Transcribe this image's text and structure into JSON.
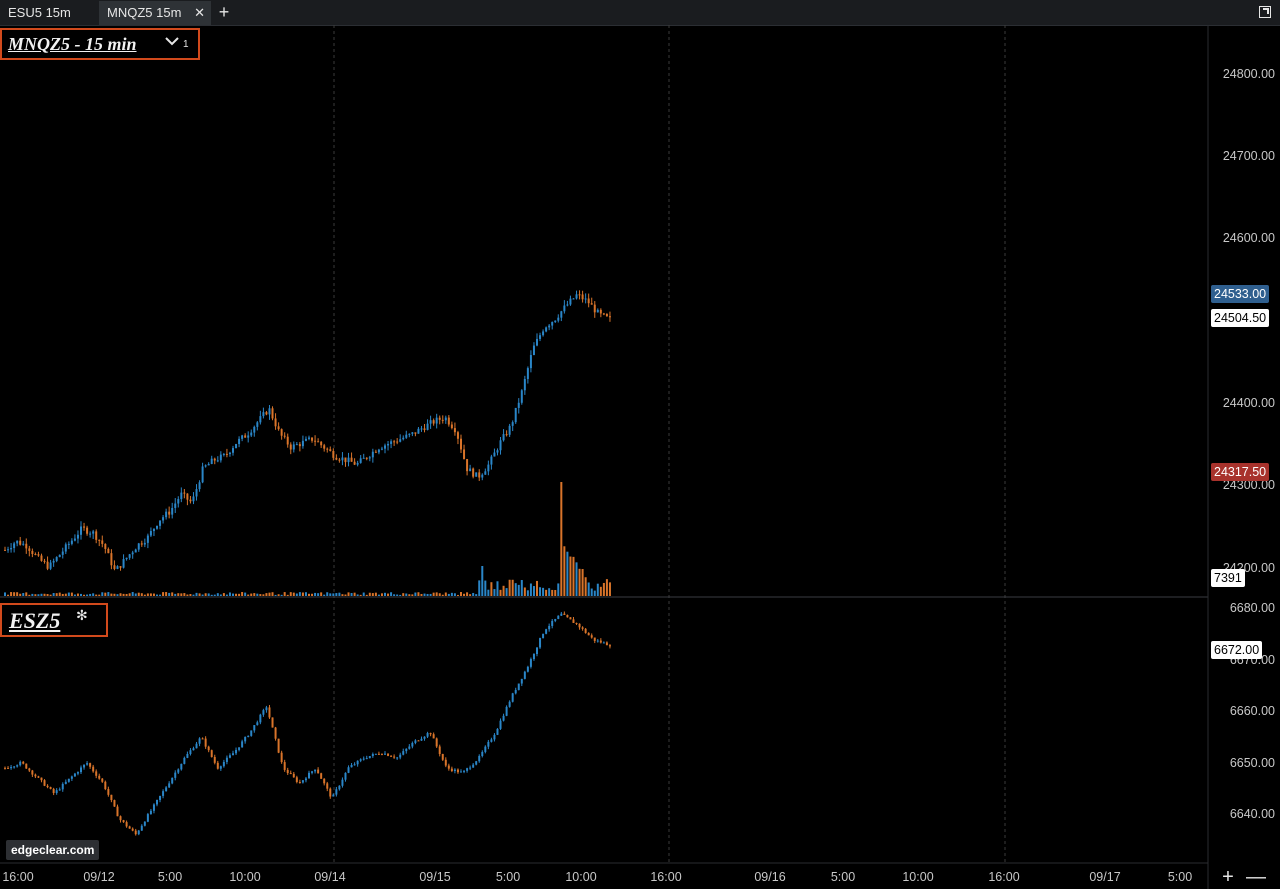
{
  "tabs": [
    {
      "label": "ESU5 15m",
      "active": false
    },
    {
      "label": "MNQZ5 15m",
      "active": true
    }
  ],
  "tab_close_glyph": "✕",
  "add_tab_glyph": "+",
  "top_pane": {
    "symbol_label": "MNQZ5 - 15 min",
    "study_count": "1",
    "y_axis_labels": [
      "24800.00",
      "24700.00",
      "24600.00",
      "24400.00",
      "24300.00",
      "24200.00"
    ],
    "ask_tag": "24533.00",
    "last_tag": "24504.50",
    "bid_tag": "24317.50",
    "volume_tag": "7391"
  },
  "bottom_pane": {
    "symbol_label": "ESZ5",
    "y_axis_labels": [
      "6680.00",
      "6670.00",
      "6660.00",
      "6650.00",
      "6640.00"
    ],
    "last_tag": "6672.00"
  },
  "x_axis_labels": [
    "16:00",
    "09/12",
    "5:00",
    "10:00",
    "09/14",
    "09/15",
    "5:00",
    "10:00",
    "16:00",
    "09/16",
    "5:00",
    "10:00",
    "16:00",
    "09/17",
    "5:00"
  ],
  "watermark": "edgeclear.com",
  "zoom_in_glyph": "+",
  "zoom_out_glyph": "—",
  "colors": {
    "up_candle": "#2a86c8",
    "down_candle": "#d9742a",
    "frame": "#d24a1c",
    "ask_tag": "#2f5f8f",
    "bid_tag": "#a8322c"
  },
  "chart_data": [
    {
      "type": "candlestick",
      "title": "MNQZ5 - 15 min",
      "ylim": [
        24180,
        24840
      ],
      "y_ticks": [
        24800,
        24700,
        24600,
        24400,
        24300,
        24200
      ],
      "close_path": [
        24235,
        24245,
        24240,
        24225,
        24215,
        24230,
        24245,
        24260,
        24255,
        24240,
        24210,
        24225,
        24240,
        24250,
        24270,
        24280,
        24300,
        24290,
        24330,
        24340,
        24345,
        24360,
        24370,
        24385,
        24400,
        24370,
        24355,
        24360,
        24365,
        24355,
        24345,
        24340,
        24335,
        24345,
        24355,
        24360,
        24365,
        24370,
        24378,
        24385,
        24390,
        24375,
        24330,
        24320,
        24335,
        24360,
        24380,
        24420,
        24470,
        24495,
        24505,
        24520,
        24533,
        24525,
        24510,
        24504
      ],
      "volume_last": 7391
    },
    {
      "type": "candlestick",
      "title": "ESZ5",
      "ylim": [
        6630,
        6680
      ],
      "y_ticks": [
        6680,
        6670,
        6660,
        6650,
        6640
      ],
      "close_path": [
        6648,
        6649,
        6646,
        6643,
        6646,
        6649,
        6645,
        6638,
        6635,
        6640,
        6645,
        6650,
        6654,
        6648,
        6651,
        6655,
        6660,
        6648,
        6645,
        6648,
        6642,
        6648,
        6650,
        6651,
        6650,
        6653,
        6655,
        6648,
        6647,
        6650,
        6655,
        6662,
        6668,
        6675,
        6678,
        6676,
        6673,
        6672
      ]
    }
  ]
}
